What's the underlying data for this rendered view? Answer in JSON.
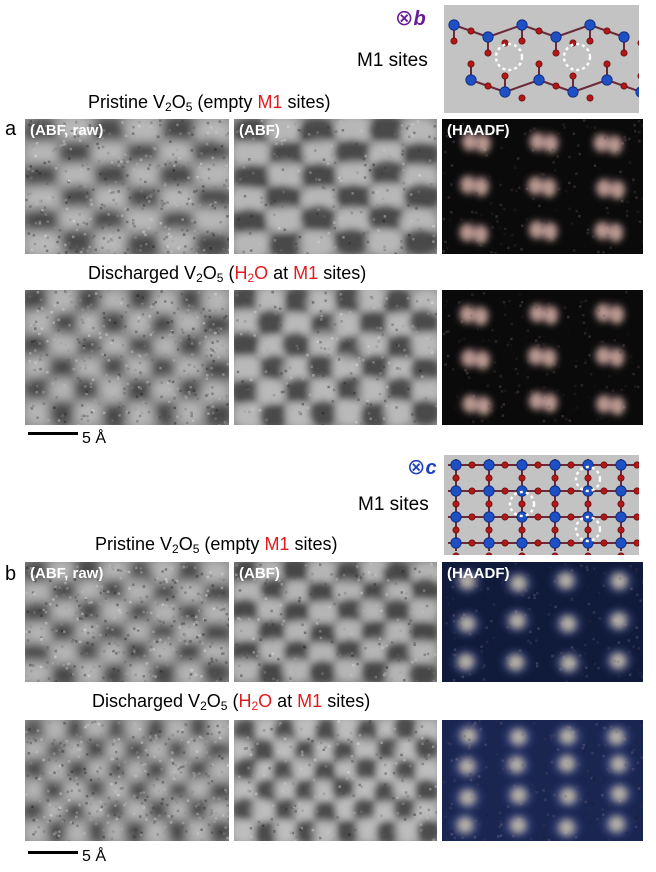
{
  "panel_a": {
    "letter": "a",
    "axis_symbol": "⊗",
    "axis_letter": "b",
    "m1_label": "M1 sites",
    "pristine": {
      "prefix": "Pristine V",
      "sub1": "2",
      "mid": "O",
      "sub2": "5",
      "paren_open": "  (empty ",
      "red": "M1",
      "paren_close": " sites)"
    },
    "discharged": {
      "prefix": "Discharged V",
      "sub1": "2",
      "mid": "O",
      "sub2": "5",
      "paren_open": "  (",
      "red1a": "H",
      "red1sub": "2",
      "red1b": "O",
      "at": " at ",
      "red2": "M1",
      "paren_close": " sites)"
    },
    "tags": [
      "(ABF, raw)",
      "(ABF)",
      "(HAADF)"
    ],
    "scale": "5 Å"
  },
  "panel_b": {
    "letter": "b",
    "axis_symbol": "⊗",
    "axis_letter": "c",
    "m1_label": "M1 sites",
    "pristine": {
      "prefix": "Pristine V",
      "sub1": "2",
      "mid": "O",
      "sub2": "5",
      "paren_open": "  (empty ",
      "red": "M1",
      "paren_close": " sites)"
    },
    "discharged": {
      "prefix": "Discharged V",
      "sub1": "2",
      "mid": "O",
      "sub2": "5",
      "paren_open": "  (",
      "red1a": "H",
      "red1sub": "2",
      "red1b": "O",
      "at": " at ",
      "red2": "M1",
      "paren_close": " sites)"
    },
    "tags": [
      "(ABF, raw)",
      "(ABF)",
      "(HAADF)"
    ],
    "scale": "5 Å"
  },
  "colors": {
    "axis_b": "#6a1b9a",
    "axis_c": "#1f3fbf",
    "highlight": "#e31a1c",
    "vanadium": "#1f4fc4",
    "oxygen": "#b01818",
    "struct_bg": "#c3c3c3",
    "haadf_a": "#f4d7b8",
    "haadf_b": "#f6e3b0"
  }
}
